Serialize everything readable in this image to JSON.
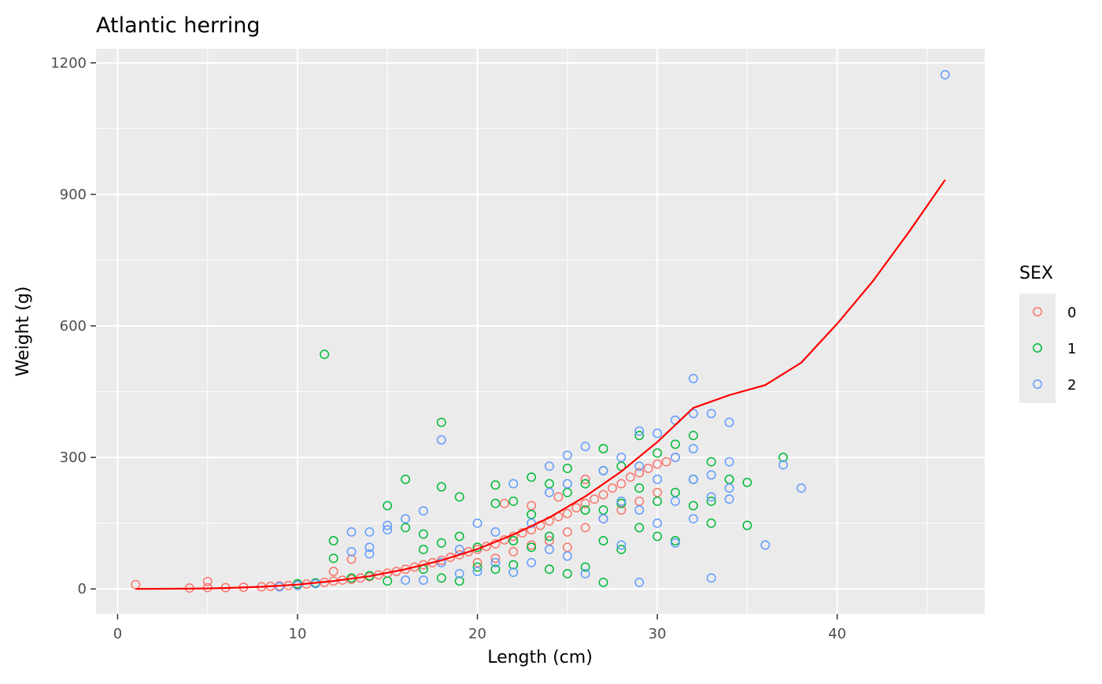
{
  "chart_data": {
    "type": "scatter",
    "title": "Atlantic herring",
    "xlabel": "Length (cm)",
    "ylabel": "Weight (g)",
    "xlim": [
      -1.2,
      48.2
    ],
    "ylim": [
      -57,
      1232
    ],
    "x_ticks": [
      0,
      10,
      20,
      30,
      40
    ],
    "y_ticks": [
      0,
      300,
      600,
      900,
      1200
    ],
    "grid": true,
    "legend": {
      "title": "SEX",
      "position": "right",
      "entries": [
        "0",
        "1",
        "2"
      ]
    },
    "colors": {
      "panel_background": "#ebebeb",
      "grid": "#ffffff",
      "fit_line": "#ff0000",
      "sex_0": "#f8766d",
      "sex_1": "#00ba38",
      "sex_2": "#619cff"
    },
    "series": [
      {
        "name": "0",
        "points": [
          [
            1,
            10
          ],
          [
            4,
            2
          ],
          [
            5,
            3
          ],
          [
            5,
            17
          ],
          [
            6,
            3
          ],
          [
            7,
            4
          ],
          [
            8,
            5
          ],
          [
            8.5,
            6
          ],
          [
            9,
            7
          ],
          [
            9.5,
            8
          ],
          [
            10,
            10
          ],
          [
            10.5,
            11
          ],
          [
            11,
            13
          ],
          [
            11.5,
            15
          ],
          [
            12,
            18
          ],
          [
            12,
            40
          ],
          [
            12.5,
            20
          ],
          [
            13,
            22
          ],
          [
            13,
            68
          ],
          [
            13.5,
            25
          ],
          [
            14,
            28
          ],
          [
            14.5,
            32
          ],
          [
            15,
            36
          ],
          [
            15.5,
            40
          ],
          [
            16,
            45
          ],
          [
            16.5,
            50
          ],
          [
            17,
            55
          ],
          [
            17.5,
            60
          ],
          [
            18,
            65
          ],
          [
            18.5,
            72
          ],
          [
            19,
            78
          ],
          [
            19.5,
            85
          ],
          [
            20,
            90
          ],
          [
            20.5,
            97
          ],
          [
            21,
            103
          ],
          [
            21.5,
            112
          ],
          [
            21.5,
            195
          ],
          [
            22,
            120
          ],
          [
            22.5,
            128
          ],
          [
            23,
            135
          ],
          [
            23,
            190
          ],
          [
            23.5,
            145
          ],
          [
            24,
            155
          ],
          [
            24.5,
            165
          ],
          [
            24.5,
            210
          ],
          [
            25,
            172
          ],
          [
            25,
            95
          ],
          [
            25.5,
            185
          ],
          [
            26,
            195
          ],
          [
            26,
            250
          ],
          [
            26.5,
            205
          ],
          [
            27,
            215
          ],
          [
            27.5,
            230
          ],
          [
            28,
            240
          ],
          [
            28.5,
            255
          ],
          [
            29,
            265
          ],
          [
            29.5,
            275
          ],
          [
            30,
            285
          ],
          [
            30.5,
            290
          ],
          [
            31,
            300
          ],
          [
            20,
            60
          ],
          [
            21,
            70
          ],
          [
            22,
            85
          ],
          [
            23,
            100
          ],
          [
            24,
            110
          ],
          [
            25,
            130
          ],
          [
            26,
            140
          ],
          [
            27,
            160
          ],
          [
            28,
            180
          ],
          [
            29,
            200
          ],
          [
            30,
            220
          ]
        ]
      },
      {
        "name": "1",
        "points": [
          [
            10,
            12
          ],
          [
            11,
            14
          ],
          [
            11.5,
            535
          ],
          [
            12,
            70
          ],
          [
            12,
            110
          ],
          [
            13,
            25
          ],
          [
            14,
            30
          ],
          [
            15,
            190
          ],
          [
            15,
            18
          ],
          [
            16,
            250
          ],
          [
            16,
            140
          ],
          [
            17,
            90
          ],
          [
            17,
            125
          ],
          [
            17,
            45
          ],
          [
            18,
            380
          ],
          [
            18,
            233
          ],
          [
            18,
            105
          ],
          [
            18,
            25
          ],
          [
            19,
            210
          ],
          [
            19,
            120
          ],
          [
            19,
            18
          ],
          [
            20,
            95
          ],
          [
            20,
            50
          ],
          [
            21,
            237
          ],
          [
            21,
            195
          ],
          [
            21,
            45
          ],
          [
            22,
            200
          ],
          [
            22,
            110
          ],
          [
            22,
            55
          ],
          [
            23,
            255
          ],
          [
            23,
            170
          ],
          [
            23,
            95
          ],
          [
            24,
            240
          ],
          [
            24,
            120
          ],
          [
            24,
            45
          ],
          [
            25,
            220
          ],
          [
            25,
            275
          ],
          [
            25,
            35
          ],
          [
            26,
            240
          ],
          [
            26,
            180
          ],
          [
            26,
            50
          ],
          [
            27,
            320
          ],
          [
            27,
            270
          ],
          [
            27,
            180
          ],
          [
            27,
            110
          ],
          [
            27,
            15
          ],
          [
            28,
            280
          ],
          [
            28,
            195
          ],
          [
            28,
            90
          ],
          [
            29,
            350
          ],
          [
            29,
            230
          ],
          [
            29,
            140
          ],
          [
            30,
            310
          ],
          [
            30,
            200
          ],
          [
            30,
            120
          ],
          [
            31,
            330
          ],
          [
            31,
            220
          ],
          [
            31,
            110
          ],
          [
            32,
            350
          ],
          [
            32,
            250
          ],
          [
            32,
            190
          ],
          [
            33,
            290
          ],
          [
            33,
            200
          ],
          [
            33,
            150
          ],
          [
            34,
            250
          ],
          [
            35,
            243
          ],
          [
            35,
            145
          ],
          [
            37,
            300
          ]
        ]
      },
      {
        "name": "2",
        "points": [
          [
            9,
            5
          ],
          [
            10,
            8
          ],
          [
            11,
            12
          ],
          [
            13,
            130
          ],
          [
            13,
            85
          ],
          [
            14,
            130
          ],
          [
            14,
            95
          ],
          [
            14,
            80
          ],
          [
            15,
            145
          ],
          [
            15,
            135
          ],
          [
            16,
            160
          ],
          [
            16,
            20
          ],
          [
            17,
            178
          ],
          [
            17,
            20
          ],
          [
            18,
            340
          ],
          [
            18,
            60
          ],
          [
            19,
            90
          ],
          [
            19,
            35
          ],
          [
            20,
            150
          ],
          [
            20,
            40
          ],
          [
            21,
            130
          ],
          [
            21,
            60
          ],
          [
            22,
            240
          ],
          [
            22,
            38
          ],
          [
            23,
            150
          ],
          [
            23,
            60
          ],
          [
            24,
            280
          ],
          [
            24,
            220
          ],
          [
            24,
            90
          ],
          [
            25,
            305
          ],
          [
            25,
            240
          ],
          [
            25,
            75
          ],
          [
            26,
            325
          ],
          [
            26,
            35
          ],
          [
            27,
            270
          ],
          [
            27,
            160
          ],
          [
            28,
            300
          ],
          [
            28,
            200
          ],
          [
            28,
            100
          ],
          [
            29,
            360
          ],
          [
            29,
            280
          ],
          [
            29,
            180
          ],
          [
            29,
            15
          ],
          [
            30,
            355
          ],
          [
            30,
            250
          ],
          [
            30,
            150
          ],
          [
            31,
            385
          ],
          [
            31,
            300
          ],
          [
            31,
            200
          ],
          [
            31,
            105
          ],
          [
            32,
            480
          ],
          [
            32,
            400
          ],
          [
            32,
            320
          ],
          [
            32,
            250
          ],
          [
            32,
            160
          ],
          [
            33,
            400
          ],
          [
            33,
            260
          ],
          [
            33,
            210
          ],
          [
            33,
            25
          ],
          [
            34,
            380
          ],
          [
            34,
            290
          ],
          [
            34,
            230
          ],
          [
            34,
            205
          ],
          [
            36,
            100
          ],
          [
            37,
            283
          ],
          [
            38,
            230
          ],
          [
            46,
            1173
          ]
        ]
      },
      {
        "name": "",
        "type": "line",
        "points": [
          [
            1,
            0.1
          ],
          [
            4,
            0.6
          ],
          [
            6,
            2
          ],
          [
            8,
            5
          ],
          [
            10,
            10
          ],
          [
            12,
            18
          ],
          [
            14,
            29
          ],
          [
            16,
            45
          ],
          [
            18,
            65
          ],
          [
            20,
            91
          ],
          [
            22,
            124
          ],
          [
            24,
            163
          ],
          [
            26,
            211
          ],
          [
            28,
            268
          ],
          [
            30,
            335
          ],
          [
            32,
            413
          ],
          [
            34,
            442
          ],
          [
            36,
            465
          ],
          [
            38,
            516
          ],
          [
            40,
            605
          ],
          [
            42,
            703
          ],
          [
            44,
            815
          ],
          [
            46,
            933
          ]
        ]
      }
    ]
  }
}
